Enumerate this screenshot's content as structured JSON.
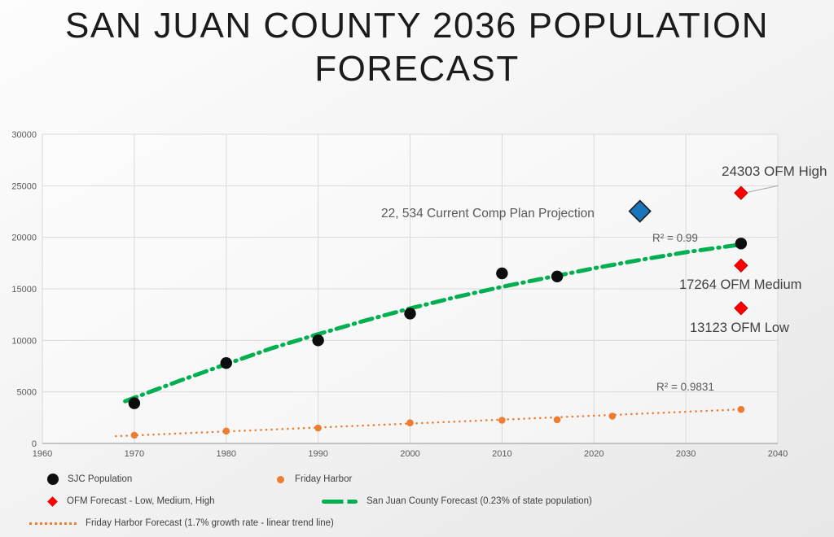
{
  "title": "SAN JUAN COUNTY 2036 POPULATION FORECAST",
  "chart_data": {
    "type": "scatter",
    "title": "SAN JUAN COUNTY 2036 POPULATION FORECAST",
    "xlabel": "",
    "ylabel": "",
    "xlim": [
      1960,
      2040
    ],
    "ylim": [
      0,
      30000
    ],
    "grid": true,
    "x_ticks": [
      1960,
      1970,
      1980,
      1990,
      2000,
      2010,
      2020,
      2030,
      2040
    ],
    "y_ticks": [
      0,
      5000,
      10000,
      15000,
      20000,
      25000,
      30000
    ],
    "series": [
      {
        "id": "sjc-population",
        "name": "SJC Population",
        "type": "scatter",
        "marker": "circle",
        "color": "#0d0d0d",
        "points": [
          [
            1970,
            3900
          ],
          [
            1980,
            7800
          ],
          [
            1990,
            10000
          ],
          [
            2000,
            12600
          ],
          [
            2010,
            16500
          ],
          [
            2016,
            16200
          ],
          [
            2036,
            19400
          ]
        ]
      },
      {
        "id": "friday-harbor",
        "name": "Friday Harbor",
        "type": "scatter",
        "marker": "circle-small",
        "color": "#ED7D31",
        "points": [
          [
            1970,
            800
          ],
          [
            1980,
            1200
          ],
          [
            1990,
            1500
          ],
          [
            2000,
            2000
          ],
          [
            2010,
            2250
          ],
          [
            2016,
            2300
          ],
          [
            2022,
            2650
          ],
          [
            2036,
            3300
          ]
        ]
      },
      {
        "id": "ofm-forecast",
        "name": "OFM Forecast - Low, Medium, High",
        "type": "scatter",
        "marker": "diamond",
        "color": "#FF0000",
        "points": [
          [
            2036,
            24303
          ],
          [
            2036,
            17264
          ],
          [
            2036,
            13123
          ]
        ]
      },
      {
        "id": "comp-plan-projection",
        "name": "Current Comp Plan Projection",
        "type": "scatter",
        "marker": "diamond-large",
        "color": "#1B75BB",
        "points": [
          [
            2025,
            22534
          ]
        ]
      },
      {
        "id": "sjc-forecast-line",
        "name": "San Juan County Forecast (0.23% of state population)",
        "type": "line",
        "style": "dash-dot",
        "color": "#00B050",
        "r_squared": 0.99,
        "points": [
          [
            1969,
            4100
          ],
          [
            1975,
            6100
          ],
          [
            1980,
            7700
          ],
          [
            1985,
            9250
          ],
          [
            1990,
            10600
          ],
          [
            1995,
            11900
          ],
          [
            2000,
            13100
          ],
          [
            2005,
            14200
          ],
          [
            2010,
            15200
          ],
          [
            2015,
            16100
          ],
          [
            2020,
            17000
          ],
          [
            2025,
            17800
          ],
          [
            2030,
            18550
          ],
          [
            2036,
            19300
          ]
        ]
      },
      {
        "id": "friday-harbor-forecast-line",
        "name": "Friday Harbor Forecast (1.7% growth rate -  linear trend line)",
        "type": "line",
        "style": "dotted",
        "color": "#ED7D31",
        "r_squared": 0.9831,
        "points": [
          [
            1968,
            700
          ],
          [
            2036,
            3300
          ]
        ]
      }
    ],
    "annotations": {
      "ofm_high": {
        "text": "24303 OFM High",
        "x": 2036,
        "y": 24303
      },
      "ofm_medium": {
        "text": "17264 OFM Medium",
        "x": 2036,
        "y": 17264
      },
      "ofm_low": {
        "text": "13123 OFM Low",
        "x": 2036,
        "y": 13123
      },
      "comp_plan": {
        "text": "22, 534 Current Comp Plan Projection",
        "x": 2025,
        "y": 22534
      },
      "r2_sjc": {
        "text": "R² = 0.99"
      },
      "r2_fh": {
        "text": "R² = 0.9831"
      }
    },
    "legend_position": "bottom"
  }
}
